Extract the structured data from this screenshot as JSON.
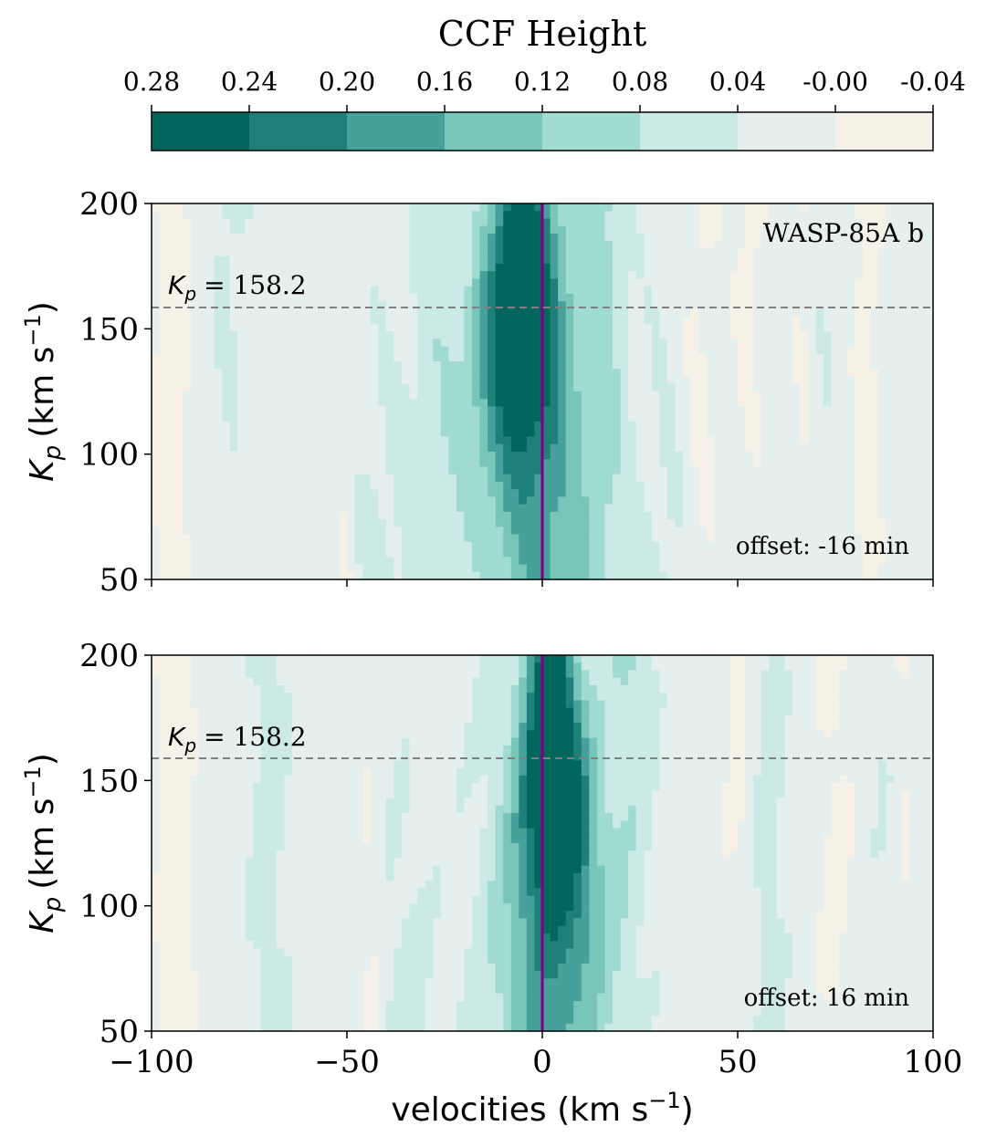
{
  "colorbar": {
    "title": "CCF Height",
    "ticks": [
      "0.28",
      "0.24",
      "0.20",
      "0.16",
      "0.12",
      "0.08",
      "0.04",
      "-0.00",
      "-0.04"
    ],
    "levels": [
      0.28,
      0.24,
      0.2,
      0.16,
      0.12,
      0.08,
      0.04,
      0.0,
      -0.04
    ],
    "colors": [
      "#01665e",
      "#1e8078",
      "#45a199",
      "#78c5b9",
      "#a0dbd2",
      "#cbeae5",
      "#e5f0ee",
      "#f5f1e6"
    ]
  },
  "axes": {
    "xlabel": "velocities (km s",
    "xlabel_sup": "−1",
    "xlabel_end": ")",
    "ylabel": "K",
    "ylabel_sub": "p",
    "ylabel_unit": "(km s",
    "ylabel_sup": "−1",
    "ylabel_end": ")",
    "xticks": [
      "−100",
      "−50",
      "0",
      "50",
      "100"
    ],
    "yticks": [
      "50",
      "100",
      "150",
      "200"
    ]
  },
  "panels": [
    {
      "planet_label": "WASP-85A b",
      "kp_label": "K",
      "kp_sub": "p",
      "kp_value": "= 158.2",
      "offset_label": "offset: -16 min"
    },
    {
      "planet_label": "",
      "kp_label": "K",
      "kp_sub": "p",
      "kp_value": "= 158.2",
      "offset_label": "offset: 16 min"
    }
  ],
  "colors": {
    "marker_line": "#800080",
    "kp_line": "#808080",
    "axis": "#000000"
  },
  "chart_data": [
    {
      "type": "heatmap",
      "title": "",
      "xlabel": "velocities (km s^-1)",
      "ylabel": "Kp (km s^-1)",
      "xlim": [
        -100,
        100
      ],
      "ylim": [
        50,
        200
      ],
      "kp_line": 158.2,
      "velocity_marker": 0,
      "peak": {
        "x": -6,
        "y": 160,
        "value": 0.26
      },
      "annotation": "WASP-85A b",
      "offset": "offset: -16 min"
    },
    {
      "type": "heatmap",
      "title": "",
      "xlabel": "velocities (km s^-1)",
      "ylabel": "Kp (km s^-1)",
      "xlim": [
        -100,
        100
      ],
      "ylim": [
        50,
        200
      ],
      "kp_line": 158.2,
      "velocity_marker": 0,
      "peak": {
        "x": 3,
        "y": 160,
        "value": 0.27
      },
      "offset": "offset: 16 min"
    }
  ]
}
